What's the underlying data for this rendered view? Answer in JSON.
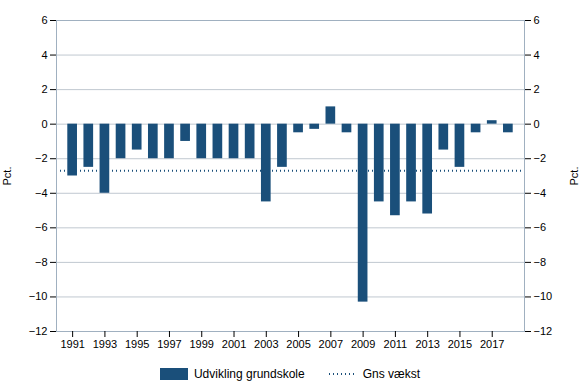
{
  "chart_data": {
    "type": "bar",
    "x": [
      1991,
      1992,
      1993,
      1994,
      1995,
      1996,
      1997,
      1998,
      1999,
      2000,
      2001,
      2002,
      2003,
      2004,
      2005,
      2006,
      2007,
      2008,
      2009,
      2010,
      2011,
      2012,
      2013,
      2014,
      2015,
      2016,
      2017,
      2018
    ],
    "series": [
      {
        "name": "Udvikling grundskole",
        "type": "bar",
        "color": "#1a4f7a",
        "values": [
          -3.0,
          -2.5,
          -4.0,
          -2.0,
          -1.5,
          -2.0,
          -2.0,
          -1.0,
          -2.0,
          -2.0,
          -2.0,
          -2.0,
          -4.5,
          -2.5,
          -0.5,
          -0.3,
          1.0,
          -0.5,
          -10.3,
          -4.5,
          -5.3,
          -4.5,
          -5.2,
          -1.5,
          -2.5,
          -0.5,
          0.2,
          -0.5
        ]
      },
      {
        "name": "Gns vækst",
        "type": "hline",
        "line_style": "dotted",
        "color": "#1a4f7a",
        "value": -2.7
      }
    ],
    "ylabel": "Pct.",
    "y2label": "Pct.",
    "xlim": [
      1990,
      2019
    ],
    "xticks": [
      1991,
      1993,
      1995,
      1997,
      1999,
      2001,
      2003,
      2005,
      2007,
      2009,
      2011,
      2013,
      2015,
      2017
    ],
    "ylim": [
      -12,
      6
    ],
    "yticks": [
      -12,
      -10,
      -8,
      -6,
      -4,
      -2,
      0,
      2,
      4,
      6
    ],
    "y2lim": [
      -12,
      6
    ],
    "y2ticks": [
      -12,
      -10,
      -8,
      -6,
      -4,
      -2,
      0,
      2,
      4,
      6
    ],
    "grid": "y",
    "legend": "bottom"
  }
}
